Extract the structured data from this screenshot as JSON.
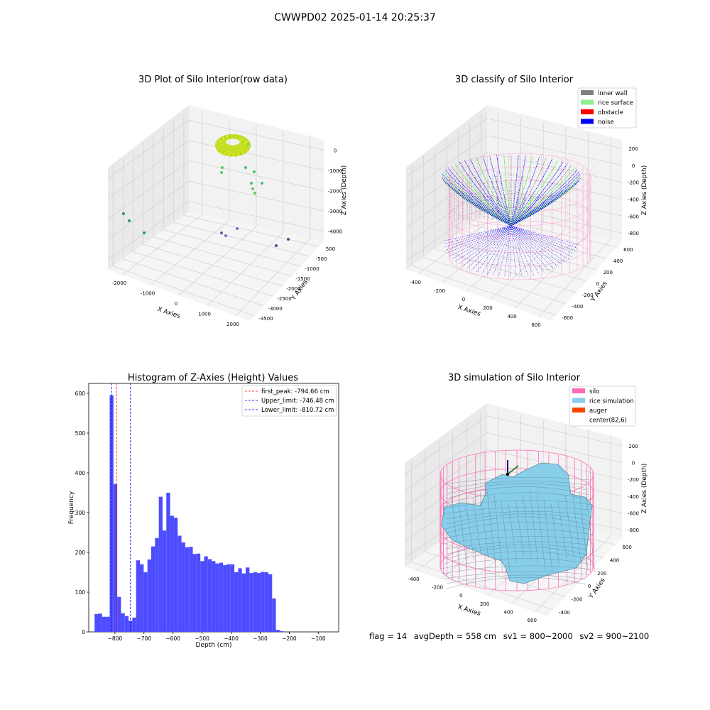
{
  "figure": {
    "suptitle": "CWWPD02 2025-01-14 20:25:37",
    "footer": {
      "flag": "flag = 14",
      "avg_depth": "avgDepth = 558 cm",
      "sv1": "sv1 = 800~2000",
      "sv2": "sv2 = 900~2100"
    }
  },
  "chart_data": [
    {
      "type": "scatter",
      "title": "3D Plot of Silo Interior(row data)",
      "xlabel": "X Axies",
      "ylabel": "Y Axies",
      "zlabel": "Z Axies (Depth)",
      "x_ticks": [
        "-2000",
        "-1000",
        "0",
        "1000",
        "2000"
      ],
      "y_ticks": [
        "500",
        "-500",
        "-1000",
        "-1500",
        "-2000",
        "-2500",
        "-3000",
        "-3500"
      ],
      "z_ticks": [
        "0",
        "-1000",
        "-2000",
        "-3000",
        "-4000"
      ],
      "colormap": "viridis"
    },
    {
      "type": "scatter",
      "title": "3D classify of Silo Interior",
      "xlabel": "X Axies",
      "ylabel": "Y Axies",
      "zlabel": "Z Axies (Depth)",
      "x_ticks": [
        "-400",
        "-200",
        "0",
        "200",
        "400",
        "600"
      ],
      "y_ticks": [
        "600",
        "400",
        "200",
        "0",
        "-200",
        "-400",
        "-600"
      ],
      "z_ticks": [
        "200",
        "0",
        "-200",
        "-400",
        "-600",
        "-800"
      ],
      "legend": [
        {
          "label": "inner wall",
          "color": "#808080"
        },
        {
          "label": "rice surface",
          "color": "#90ee90"
        },
        {
          "label": "obstacle",
          "color": "#ff0000"
        },
        {
          "label": "noise",
          "color": "#0000ff"
        }
      ],
      "legend_position": "top-right"
    },
    {
      "type": "bar",
      "title": "Histogram of Z-Axies (Height) Values",
      "xlabel": "Depth (cm)",
      "ylabel": "Frequency",
      "bin_width": 13,
      "x_start": -870,
      "values": [
        45,
        46,
        38,
        38,
        595,
        372,
        88,
        47,
        40,
        28,
        36,
        180,
        170,
        150,
        182,
        215,
        236,
        340,
        255,
        350,
        292,
        287,
        242,
        225,
        213,
        214,
        196,
        197,
        178,
        190,
        183,
        178,
        172,
        174,
        168,
        170,
        170,
        150,
        160,
        147,
        162,
        148,
        150,
        148,
        151,
        150,
        145,
        84,
        5,
        2
      ],
      "xlim": [
        -890,
        -30
      ],
      "ylim": [
        0,
        625
      ],
      "x_ticks": [
        -800,
        -700,
        -600,
        -500,
        -400,
        -300,
        -200,
        -100
      ],
      "y_ticks": [
        0,
        100,
        200,
        300,
        400,
        500,
        600
      ],
      "bar_color": "#4d4dff",
      "vlines": [
        {
          "label": "first_peak: -794.66 cm",
          "x": -794.66,
          "color": "#ff0000"
        },
        {
          "label": "Upper_limit: -746.48 cm",
          "x": -746.48,
          "color": "#0000ff"
        },
        {
          "label": "Lower_limit: -810.72 cm",
          "x": -810.72,
          "color": "#0000ff"
        }
      ],
      "legend_position": "top-right"
    },
    {
      "type": "area",
      "title": "3D simulation of Silo Interior",
      "xlabel": "X Axies",
      "ylabel": "Y Axies",
      "zlabel": "Z Axies (Depth)",
      "x_ticks": [
        "-400",
        "-200",
        "0",
        "200",
        "400",
        "600"
      ],
      "y_ticks": [
        "600",
        "400",
        "200",
        "0",
        "-200",
        "-400"
      ],
      "z_ticks": [
        "200",
        "0",
        "-200",
        "-400",
        "-600",
        "-800"
      ],
      "legend": [
        {
          "label": "silo",
          "color": "#ff69b4"
        },
        {
          "label": "rice simulation",
          "color": "#87ceeb"
        },
        {
          "label": "auger",
          "color": "#ff4500"
        },
        {
          "label": "center(82,6)",
          "color": ""
        }
      ],
      "legend_position": "top-right"
    }
  ]
}
